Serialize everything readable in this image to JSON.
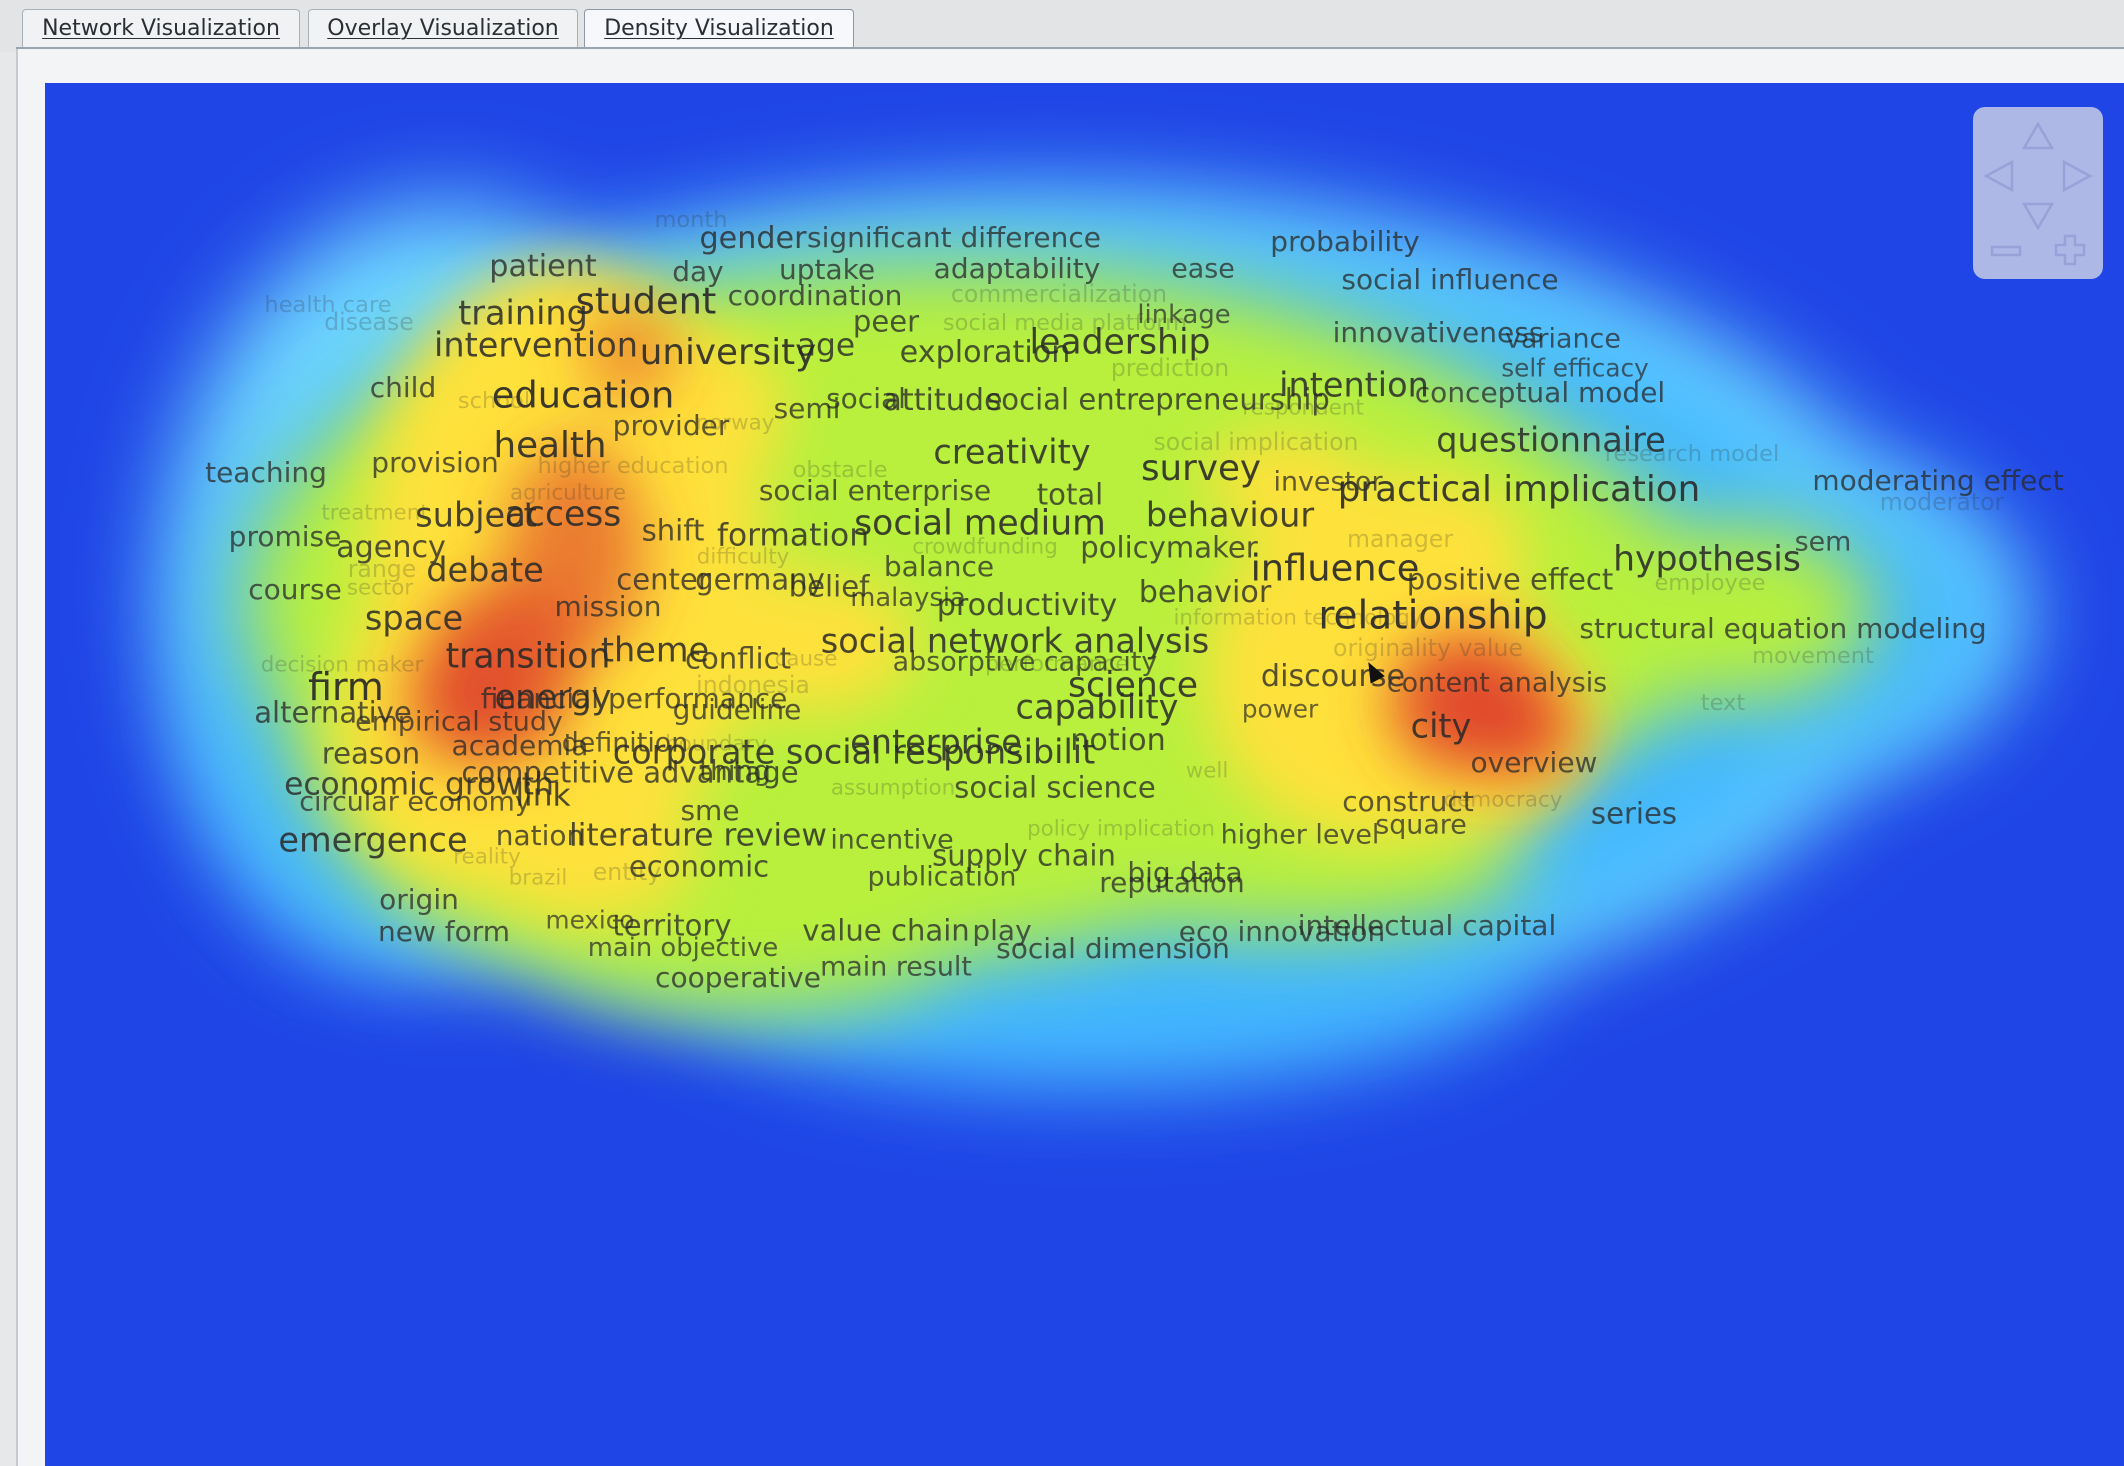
{
  "tabs": [
    {
      "label": "Network Visualization",
      "active": false
    },
    {
      "label": "Overlay Visualization",
      "active": false
    },
    {
      "label": "Density Visualization",
      "active": true
    }
  ],
  "colors": {
    "background": "#1f45e6",
    "low": "#2a6cf0",
    "mid": "#b8f03c",
    "high": "#ffe13a",
    "peak": "#e0452a"
  },
  "nav_icons": [
    "arrow-up-icon",
    "arrow-left-icon",
    "arrow-right-icon",
    "arrow-down-icon",
    "zoom-out-icon",
    "zoom-in-icon"
  ],
  "terms": [
    {
      "text": "month",
      "weight": 0.25
    },
    {
      "text": "gender",
      "weight": 0.6
    },
    {
      "text": "significant difference",
      "weight": 0.5
    },
    {
      "text": "probability",
      "weight": 0.5
    },
    {
      "text": "patient",
      "weight": 0.6
    },
    {
      "text": "day",
      "weight": 0.5
    },
    {
      "text": "uptake",
      "weight": 0.5
    },
    {
      "text": "adaptability",
      "weight": 0.5
    },
    {
      "text": "ease",
      "weight": 0.45
    },
    {
      "text": "social influence",
      "weight": 0.5
    },
    {
      "text": "health care",
      "weight": 0.25
    },
    {
      "text": "disease",
      "weight": 0.3
    },
    {
      "text": "training",
      "weight": 0.75
    },
    {
      "text": "student",
      "weight": 0.9
    },
    {
      "text": "coordination",
      "weight": 0.5
    },
    {
      "text": "commercialization",
      "weight": 0.3
    },
    {
      "text": "peer",
      "weight": 0.55
    },
    {
      "text": "social media platform",
      "weight": 0.25
    },
    {
      "text": "linkage",
      "weight": 0.4
    },
    {
      "text": "innovativeness",
      "weight": 0.5
    },
    {
      "text": "variance",
      "weight": 0.45
    },
    {
      "text": "intervention",
      "weight": 0.75
    },
    {
      "text": "university",
      "weight": 0.85
    },
    {
      "text": "age",
      "weight": 0.65
    },
    {
      "text": "exploration",
      "weight": 0.6
    },
    {
      "text": "leadership",
      "weight": 0.8
    },
    {
      "text": "prediction",
      "weight": 0.3
    },
    {
      "text": "self efficacy",
      "weight": 0.35
    },
    {
      "text": "child",
      "weight": 0.5
    },
    {
      "text": "education",
      "weight": 0.9
    },
    {
      "text": "semi",
      "weight": 0.5
    },
    {
      "text": "social",
      "weight": 0.5
    },
    {
      "text": "attitude",
      "weight": 0.6
    },
    {
      "text": "social entrepreneurship",
      "weight": 0.55
    },
    {
      "text": "intention",
      "weight": 0.75
    },
    {
      "text": "conceptual model",
      "weight": 0.5
    },
    {
      "text": "provider",
      "weight": 0.5
    },
    {
      "text": "school",
      "weight": 0.25
    },
    {
      "text": "norway",
      "weight": 0.2
    },
    {
      "text": "health",
      "weight": 0.85
    },
    {
      "text": "creativity",
      "weight": 0.75
    },
    {
      "text": "social implication",
      "weight": 0.3
    },
    {
      "text": "questionnaire",
      "weight": 0.75
    },
    {
      "text": "respondent",
      "weight": 0.2
    },
    {
      "text": "research model",
      "weight": 0.25
    },
    {
      "text": "teaching",
      "weight": 0.5
    },
    {
      "text": "provision",
      "weight": 0.5
    },
    {
      "text": "higher education",
      "weight": 0.25
    },
    {
      "text": "obstacle",
      "weight": 0.25
    },
    {
      "text": "survey",
      "weight": 0.85
    },
    {
      "text": "investor",
      "weight": 0.45
    },
    {
      "text": "practical implication",
      "weight": 0.85
    },
    {
      "text": "moderating effect",
      "weight": 0.5
    },
    {
      "text": "moderator",
      "weight": 0.3
    },
    {
      "text": "treatment",
      "weight": 0.2
    },
    {
      "text": "agriculture",
      "weight": 0.2
    },
    {
      "text": "subject",
      "weight": 0.75
    },
    {
      "text": "access",
      "weight": 0.8
    },
    {
      "text": "social enterprise",
      "weight": 0.5
    },
    {
      "text": "total",
      "weight": 0.55
    },
    {
      "text": "behaviour",
      "weight": 0.75
    },
    {
      "text": "manager",
      "weight": 0.3
    },
    {
      "text": "promise",
      "weight": 0.5
    },
    {
      "text": "shift",
      "weight": 0.55
    },
    {
      "text": "formation",
      "weight": 0.65
    },
    {
      "text": "social medium",
      "weight": 0.8
    },
    {
      "text": "crowdfunding",
      "weight": 0.2
    },
    {
      "text": "policymaker",
      "weight": 0.55
    },
    {
      "text": "hypothesis",
      "weight": 0.8
    },
    {
      "text": "sem",
      "weight": 0.45
    },
    {
      "text": "agency",
      "weight": 0.6
    },
    {
      "text": "difficulty",
      "weight": 0.2
    },
    {
      "text": "influence",
      "weight": 0.9
    },
    {
      "text": "range",
      "weight": 0.3
    },
    {
      "text": "debate",
      "weight": 0.75
    },
    {
      "text": "balance",
      "weight": 0.5
    },
    {
      "text": "center",
      "weight": 0.55
    },
    {
      "text": "germany",
      "weight": 0.55
    },
    {
      "text": "belief",
      "weight": 0.55
    },
    {
      "text": "positive effect",
      "weight": 0.55
    },
    {
      "text": "employee",
      "weight": 0.25
    },
    {
      "text": "course",
      "weight": 0.5
    },
    {
      "text": "sector",
      "weight": 0.2
    },
    {
      "text": "behavior",
      "weight": 0.6
    },
    {
      "text": "malaysia",
      "weight": 0.4
    },
    {
      "text": "productivity",
      "weight": 0.6
    },
    {
      "text": "space",
      "weight": 0.75
    },
    {
      "text": "mission",
      "weight": 0.5
    },
    {
      "text": "information technology",
      "weight": 0.2
    },
    {
      "text": "relationship",
      "weight": 1.0
    },
    {
      "text": "structural equation modeling",
      "weight": 0.5
    },
    {
      "text": "originality value",
      "weight": 0.3
    },
    {
      "text": "social network analysis",
      "weight": 0.75
    },
    {
      "text": "transition",
      "weight": 0.8
    },
    {
      "text": "theme",
      "weight": 0.75
    },
    {
      "text": "conflict",
      "weight": 0.55
    },
    {
      "text": "cause",
      "weight": 0.2
    },
    {
      "text": "absorptive capacity",
      "weight": 0.45
    },
    {
      "text": "movement",
      "weight": 0.25
    },
    {
      "text": "decision maker",
      "weight": 0.2
    },
    {
      "text": "performance",
      "weight": 0.25
    },
    {
      "text": "discourse",
      "weight": 0.6
    },
    {
      "text": "firm",
      "weight": 0.95
    },
    {
      "text": "content analysis",
      "weight": 0.45
    },
    {
      "text": "indonesia",
      "weight": 0.3
    },
    {
      "text": "science",
      "weight": 0.8
    },
    {
      "text": "energy",
      "weight": 0.75
    },
    {
      "text": "financial performance",
      "weight": 0.5
    },
    {
      "text": "text",
      "weight": 0.25
    },
    {
      "text": "alternative",
      "weight": 0.55
    },
    {
      "text": "guideline",
      "weight": 0.5
    },
    {
      "text": "capability",
      "weight": 0.75
    },
    {
      "text": "power",
      "weight": 0.35
    },
    {
      "text": "empirical study",
      "weight": 0.45
    },
    {
      "text": "city",
      "weight": 0.75
    },
    {
      "text": "definition",
      "weight": 0.45
    },
    {
      "text": "boundary",
      "weight": 0.2
    },
    {
      "text": "academia",
      "weight": 0.5
    },
    {
      "text": "enterprise",
      "weight": 0.75
    },
    {
      "text": "notion",
      "weight": 0.6
    },
    {
      "text": "reason",
      "weight": 0.55
    },
    {
      "text": "corporate social responsibilit",
      "weight": 0.75
    },
    {
      "text": "overview",
      "weight": 0.5
    },
    {
      "text": "competitive advantage",
      "weight": 0.55
    },
    {
      "text": "well",
      "weight": 0.2
    },
    {
      "text": "thing",
      "weight": 0.5
    },
    {
      "text": "economic growth",
      "weight": 0.65
    },
    {
      "text": "assumption",
      "weight": 0.2
    },
    {
      "text": "social science",
      "weight": 0.55
    },
    {
      "text": "link",
      "weight": 0.65
    },
    {
      "text": "reputation",
      "weight": 0.5
    },
    {
      "text": "construct",
      "weight": 0.5
    },
    {
      "text": "democracy",
      "weight": 0.2
    },
    {
      "text": "circular economy",
      "weight": 0.45
    },
    {
      "text": "sme",
      "weight": 0.5
    },
    {
      "text": "series",
      "weight": 0.55
    },
    {
      "text": "emergence",
      "weight": 0.75
    },
    {
      "text": "nation",
      "weight": 0.5
    },
    {
      "text": "literature review",
      "weight": 0.65
    },
    {
      "text": "incentive",
      "weight": 0.45
    },
    {
      "text": "policy implication",
      "weight": 0.2
    },
    {
      "text": "higher level",
      "weight": 0.45
    },
    {
      "text": "square",
      "weight": 0.45
    },
    {
      "text": "reality",
      "weight": 0.2
    },
    {
      "text": "supply chain",
      "weight": 0.55
    },
    {
      "text": "economic",
      "weight": 0.55
    },
    {
      "text": "brazil",
      "weight": 0.2
    },
    {
      "text": "entity",
      "weight": 0.3
    },
    {
      "text": "publication",
      "weight": 0.45
    },
    {
      "text": "big data",
      "weight": 0.5
    },
    {
      "text": "origin",
      "weight": 0.5
    },
    {
      "text": "mexico",
      "weight": 0.35
    },
    {
      "text": "territory",
      "weight": 0.55
    },
    {
      "text": "value chain",
      "weight": 0.55
    },
    {
      "text": "play",
      "weight": 0.5
    },
    {
      "text": "eco innovation",
      "weight": 0.5
    },
    {
      "text": "intellectual capital",
      "weight": 0.5
    },
    {
      "text": "new form",
      "weight": 0.5
    },
    {
      "text": "main objective",
      "weight": 0.4
    },
    {
      "text": "social dimension",
      "weight": 0.5
    },
    {
      "text": "cooperative",
      "weight": 0.5
    },
    {
      "text": "main result",
      "weight": 0.45
    }
  ]
}
